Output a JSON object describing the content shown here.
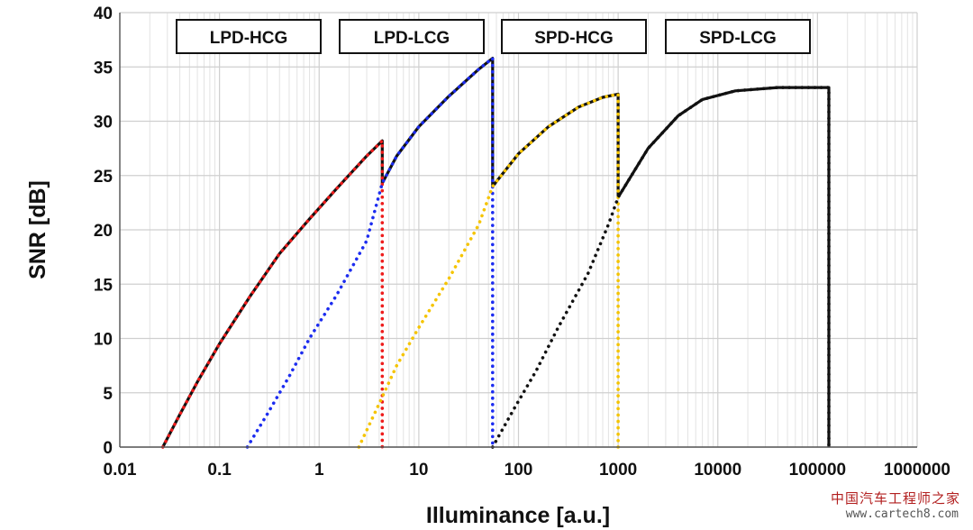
{
  "chart_data": {
    "type": "line",
    "xlabel": "Illuminance [a.u.]",
    "ylabel": "SNR [dB]",
    "x_scale": "log",
    "xlim": [
      0.01,
      1000000
    ],
    "ylim": [
      0,
      40
    ],
    "x_ticks": [
      "0.01",
      "0.1",
      "1",
      "10",
      "100",
      "1000",
      "10000",
      "100000",
      "1000000"
    ],
    "y_ticks": [
      "0",
      "5",
      "10",
      "15",
      "20",
      "25",
      "30",
      "35",
      "40"
    ],
    "grid": true,
    "region_labels": [
      "LPD-HCG",
      "LPD-LCG",
      "SPD-HCG",
      "SPD-LCG"
    ],
    "series": [
      {
        "style": "dotted",
        "color": "#ee1c1c",
        "points": [
          [
            0.027,
            0
          ],
          [
            0.04,
            3
          ],
          [
            0.06,
            6
          ],
          [
            0.1,
            9.5
          ],
          [
            0.2,
            13.8
          ],
          [
            0.4,
            17.8
          ],
          [
            0.8,
            21
          ],
          [
            1.5,
            23.8
          ],
          [
            3,
            26.8
          ],
          [
            4.3,
            28.2
          ],
          [
            4.3,
            0
          ]
        ]
      },
      {
        "style": "dotted",
        "color": "#1c2cf0",
        "points": [
          [
            0.19,
            0
          ],
          [
            0.3,
            3
          ],
          [
            0.5,
            6.5
          ],
          [
            0.8,
            10
          ],
          [
            1.5,
            14
          ],
          [
            3,
            19
          ],
          [
            4.3,
            24.3
          ],
          [
            6,
            26.8
          ],
          [
            10,
            29.5
          ],
          [
            20,
            32.3
          ],
          [
            40,
            34.8
          ],
          [
            55,
            35.8
          ],
          [
            55,
            0
          ]
        ]
      },
      {
        "style": "dotted",
        "color": "#f5c400",
        "points": [
          [
            2.5,
            0
          ],
          [
            4,
            4
          ],
          [
            6,
            7.5
          ],
          [
            10,
            11
          ],
          [
            20,
            15.5
          ],
          [
            40,
            20.5
          ],
          [
            55,
            24
          ],
          [
            100,
            27
          ],
          [
            200,
            29.5
          ],
          [
            400,
            31.3
          ],
          [
            700,
            32.2
          ],
          [
            1000,
            32.5
          ],
          [
            1000,
            0
          ]
        ]
      },
      {
        "style": "dotted",
        "color": "#111111",
        "points": [
          [
            55,
            0
          ],
          [
            90,
            3.5
          ],
          [
            150,
            7
          ],
          [
            250,
            11
          ],
          [
            500,
            16
          ],
          [
            800,
            20.5
          ],
          [
            1000,
            23
          ],
          [
            2000,
            27.5
          ],
          [
            4000,
            30.5
          ],
          [
            7000,
            32
          ],
          [
            15000,
            32.8
          ],
          [
            40000,
            33.1
          ],
          [
            130000,
            33.1
          ],
          [
            130000,
            0
          ]
        ]
      },
      {
        "style": "solid",
        "color": "#111111",
        "points": [
          [
            0.027,
            0
          ],
          [
            0.04,
            3
          ],
          [
            0.06,
            6
          ],
          [
            0.1,
            9.5
          ],
          [
            0.2,
            13.8
          ],
          [
            0.4,
            17.8
          ],
          [
            0.8,
            21
          ],
          [
            1.5,
            23.8
          ],
          [
            3,
            26.8
          ],
          [
            4.3,
            28.2
          ],
          [
            4.3,
            24.3
          ],
          [
            6,
            26.8
          ],
          [
            10,
            29.5
          ],
          [
            20,
            32.3
          ],
          [
            40,
            34.8
          ],
          [
            55,
            35.8
          ],
          [
            55,
            24
          ],
          [
            100,
            27
          ],
          [
            200,
            29.5
          ],
          [
            400,
            31.3
          ],
          [
            700,
            32.2
          ],
          [
            1000,
            32.5
          ],
          [
            1000,
            23
          ],
          [
            2000,
            27.5
          ],
          [
            4000,
            30.5
          ],
          [
            7000,
            32
          ],
          [
            15000,
            32.8
          ],
          [
            40000,
            33.1
          ],
          [
            130000,
            33.1
          ],
          [
            130000,
            0
          ]
        ]
      }
    ]
  },
  "watermark": {
    "site_cn": "中国汽车工程师之家",
    "url": "www.cartech8.com"
  }
}
